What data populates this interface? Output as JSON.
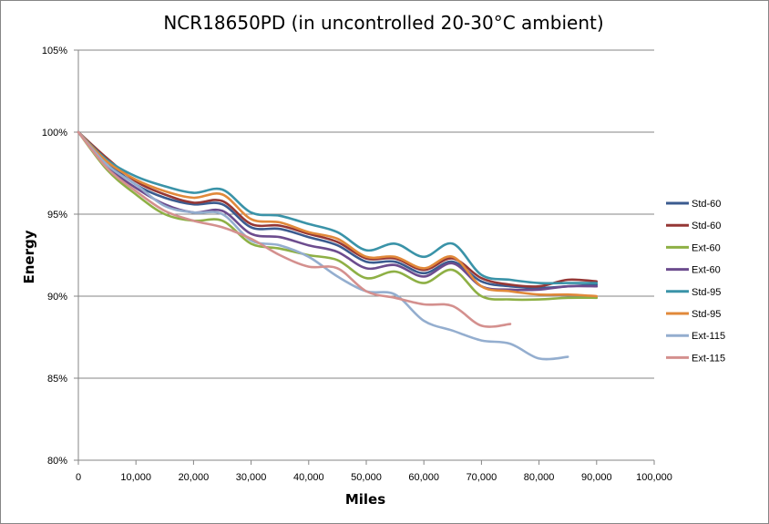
{
  "chart_data": {
    "type": "line",
    "title": "NCR18650PD (in uncontrolled 20-30°C ambient)",
    "xlabel": "Miles",
    "ylabel": "Energy",
    "xlim": [
      0,
      100000
    ],
    "ylim": [
      80,
      105
    ],
    "x_ticks": [
      0,
      10000,
      20000,
      30000,
      40000,
      50000,
      60000,
      70000,
      80000,
      90000,
      100000
    ],
    "x_tick_labels": [
      "0",
      "10,000",
      "20,000",
      "30,000",
      "40,000",
      "50,000",
      "60,000",
      "70,000",
      "80,000",
      "90,000",
      "100,000"
    ],
    "y_ticks": [
      80,
      85,
      90,
      95,
      100,
      105
    ],
    "y_tick_labels": [
      "80%",
      "85%",
      "90%",
      "95%",
      "100%",
      "105%"
    ],
    "grid": "horizontal",
    "legend_position": "right",
    "series": [
      {
        "name": "Std-60",
        "color": "#3B5B8F",
        "x": [
          0,
          5000,
          10000,
          15000,
          20000,
          25000,
          30000,
          35000,
          40000,
          45000,
          50000,
          55000,
          60000,
          65000,
          70000,
          75000,
          80000,
          85000,
          90000
        ],
        "y": [
          100,
          98.2,
          96.8,
          96.0,
          95.6,
          95.6,
          94.2,
          94.1,
          93.6,
          93.1,
          92.1,
          92.1,
          91.4,
          92.1,
          90.9,
          90.6,
          90.5,
          90.6,
          90.7
        ]
      },
      {
        "name": "Std-60",
        "color": "#953735",
        "x": [
          0,
          5000,
          10000,
          15000,
          20000,
          25000,
          30000,
          35000,
          40000,
          45000,
          50000,
          55000,
          60000,
          65000,
          70000,
          75000,
          80000,
          85000,
          90000
        ],
        "y": [
          100,
          98.4,
          97.0,
          96.2,
          95.7,
          95.8,
          94.4,
          94.3,
          93.8,
          93.3,
          92.3,
          92.3,
          91.6,
          92.3,
          91.1,
          90.7,
          90.6,
          91.0,
          90.9
        ]
      },
      {
        "name": "Ext-60",
        "color": "#8EB045",
        "x": [
          0,
          5000,
          10000,
          15000,
          20000,
          25000,
          30000,
          35000,
          40000,
          45000,
          50000,
          55000,
          60000,
          65000,
          70000,
          75000,
          80000,
          85000,
          90000
        ],
        "y": [
          100,
          97.7,
          96.2,
          95.0,
          94.6,
          94.6,
          93.2,
          92.9,
          92.5,
          92.2,
          91.1,
          91.5,
          90.8,
          91.6,
          90.0,
          89.8,
          89.8,
          89.9,
          89.9
        ]
      },
      {
        "name": "Ext-60",
        "color": "#6C4C8E",
        "x": [
          0,
          5000,
          10000,
          15000,
          20000,
          25000,
          30000,
          35000,
          40000,
          45000,
          50000,
          55000,
          60000,
          65000,
          70000,
          75000,
          80000,
          85000,
          90000
        ],
        "y": [
          100,
          97.9,
          96.6,
          95.6,
          95.1,
          95.2,
          93.8,
          93.6,
          93.1,
          92.7,
          91.7,
          91.9,
          91.2,
          92.0,
          90.6,
          90.4,
          90.4,
          90.6,
          90.6
        ]
      },
      {
        "name": "Std-95",
        "color": "#3A93A8",
        "x": [
          0,
          5000,
          10000,
          15000,
          20000,
          25000,
          30000,
          35000,
          40000,
          45000,
          50000,
          55000,
          60000,
          65000,
          70000,
          75000,
          80000,
          85000,
          90000
        ],
        "y": [
          100,
          98.3,
          97.3,
          96.7,
          96.3,
          96.5,
          95.1,
          94.9,
          94.4,
          93.9,
          92.8,
          93.2,
          92.4,
          93.2,
          91.3,
          91.0,
          90.8,
          90.8,
          90.8
        ]
      },
      {
        "name": "Std-95",
        "color": "#E1893A",
        "x": [
          0,
          5000,
          10000,
          15000,
          20000,
          25000,
          30000,
          35000,
          40000,
          45000,
          50000,
          55000,
          60000,
          65000,
          70000,
          75000,
          80000,
          85000,
          90000
        ],
        "y": [
          100,
          98.2,
          97.1,
          96.4,
          96.0,
          96.2,
          94.7,
          94.5,
          93.9,
          93.5,
          92.4,
          92.4,
          91.7,
          92.4,
          90.6,
          90.3,
          90.1,
          90.1,
          90.0
        ]
      },
      {
        "name": "Ext-115",
        "color": "#94AECF",
        "x": [
          0,
          5000,
          10000,
          15000,
          20000,
          25000,
          30000,
          35000,
          40000,
          45000,
          50000,
          55000,
          60000,
          65000,
          70000,
          75000,
          80000,
          85000
        ],
        "y": [
          100,
          98.0,
          96.8,
          95.5,
          95.1,
          95.0,
          93.4,
          93.1,
          92.4,
          91.2,
          90.3,
          90.1,
          88.5,
          87.9,
          87.3,
          87.1,
          86.2,
          86.3
        ]
      },
      {
        "name": "Ext-115",
        "color": "#D4908E",
        "x": [
          0,
          5000,
          10000,
          15000,
          20000,
          25000,
          30000,
          35000,
          40000,
          45000,
          50000,
          55000,
          60000,
          65000,
          70000,
          75000
        ],
        "y": [
          100,
          97.8,
          96.4,
          95.2,
          94.6,
          94.2,
          93.5,
          92.5,
          91.8,
          91.7,
          90.3,
          89.9,
          89.5,
          89.4,
          88.2,
          88.3
        ]
      }
    ]
  }
}
